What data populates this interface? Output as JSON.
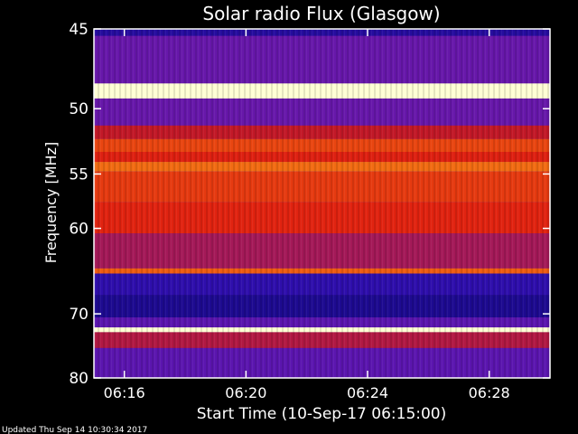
{
  "chart_data": {
    "type": "heatmap",
    "title": "Solar radio Flux (Glasgow)",
    "xlabel": "Start Time (10-Sep-17 06:15:00)",
    "ylabel": "Frequency [MHz]",
    "x_ticks": [
      "06:16",
      "06:20",
      "06:24",
      "06:28"
    ],
    "x_tick_minutes": [
      1,
      5,
      9,
      13
    ],
    "xlim_minutes": [
      0,
      15
    ],
    "y_ticks": [
      45,
      50,
      55,
      60,
      70,
      80
    ],
    "ylim": [
      45,
      80
    ],
    "y_scale": "reciprocal",
    "bands": [
      {
        "from": 45.0,
        "to": 45.4,
        "level": 0.15
      },
      {
        "from": 45.4,
        "to": 48.3,
        "level": 0.3
      },
      {
        "from": 48.3,
        "to": 49.3,
        "level": 0.95
      },
      {
        "from": 49.3,
        "to": 51.2,
        "level": 0.3
      },
      {
        "from": 51.2,
        "to": 52.2,
        "level": 0.45
      },
      {
        "from": 52.2,
        "to": 53.2,
        "level": 0.62
      },
      {
        "from": 53.2,
        "to": 54.0,
        "level": 0.55
      },
      {
        "from": 54.0,
        "to": 54.8,
        "level": 0.68
      },
      {
        "from": 54.8,
        "to": 57.5,
        "level": 0.6
      },
      {
        "from": 57.5,
        "to": 60.5,
        "level": 0.56
      },
      {
        "from": 60.5,
        "to": 64.3,
        "level": 0.4
      },
      {
        "from": 64.3,
        "to": 64.9,
        "level": 0.66
      },
      {
        "from": 64.9,
        "to": 67.5,
        "level": 0.18
      },
      {
        "from": 67.5,
        "to": 70.5,
        "level": 0.12
      },
      {
        "from": 70.5,
        "to": 71.9,
        "level": 0.28
      },
      {
        "from": 71.9,
        "to": 72.6,
        "level": 0.95
      },
      {
        "from": 72.6,
        "to": 75.0,
        "level": 0.42
      },
      {
        "from": 75.0,
        "to": 80.0,
        "level": 0.28
      }
    ],
    "colorscale": [
      "#000000",
      "#1a0a8c",
      "#3a10c0",
      "#7a1aa0",
      "#c01828",
      "#e02010",
      "#f06010",
      "#ffc020",
      "#ffffa0",
      "#ffffff"
    ]
  },
  "footer": "Updated Thu Sep 14 10:30:34 2017"
}
